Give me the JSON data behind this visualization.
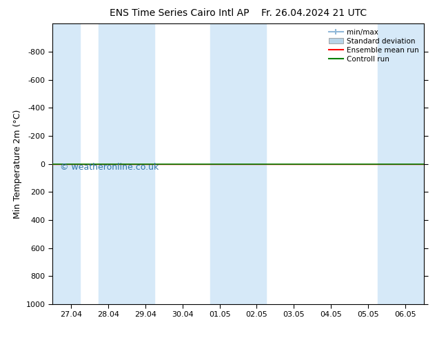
{
  "title_left": "ENS Time Series Cairo Intl AP",
  "title_right": "Fr. 26.04.2024 21 UTC",
  "ylabel": "Min Temperature 2m (°C)",
  "watermark": "© weatheronline.co.uk",
  "ylim_top": -1000,
  "ylim_bottom": 1000,
  "yticks": [
    -800,
    -600,
    -400,
    -200,
    0,
    200,
    400,
    600,
    800,
    1000
  ],
  "xtick_labels": [
    "27.04",
    "28.04",
    "29.04",
    "30.04",
    "01.05",
    "02.05",
    "03.05",
    "04.05",
    "05.05",
    "06.05"
  ],
  "xtick_positions": [
    0,
    1,
    2,
    3,
    4,
    5,
    6,
    7,
    8,
    9
  ],
  "xlim_left": -0.5,
  "xlim_right": 9.5,
  "bg_color": "#ffffff",
  "plot_bg_color": "#ffffff",
  "shaded_bands": [
    [
      -0.5,
      0.25
    ],
    [
      0.75,
      2.25
    ],
    [
      3.75,
      5.25
    ],
    [
      8.25,
      9.5
    ]
  ],
  "shade_color": "#d6e9f8",
  "ensemble_mean_y": 0.0,
  "control_run_y": 0.0,
  "ensemble_mean_color": "#ff0000",
  "control_run_color": "#008000",
  "minmax_color": "#90b8d8",
  "stddev_color": "#b8d4e8",
  "legend_labels": [
    "min/max",
    "Standard deviation",
    "Ensemble mean run",
    "Controll run"
  ],
  "title_fontsize": 10,
  "axis_label_fontsize": 9,
  "tick_fontsize": 8,
  "watermark_color": "#3377aa",
  "watermark_fontsize": 9
}
